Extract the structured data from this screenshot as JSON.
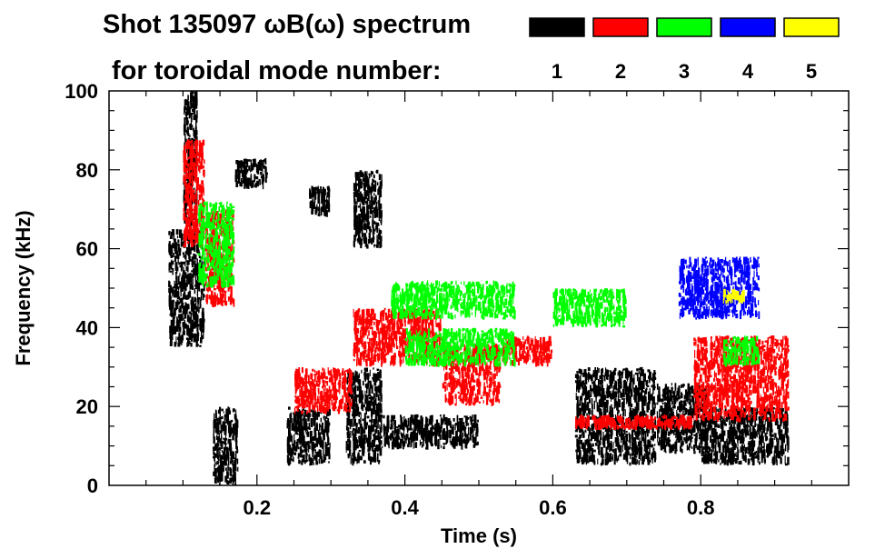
{
  "chart_data": {
    "type": "scatter",
    "title_line1": "Shot 135097 ωB(ω) spectrum",
    "title_line2": "for toroidal mode number:",
    "xlabel": "Time (s)",
    "ylabel": "Frequency (kHz)",
    "xlim": [
      0.0,
      1.0
    ],
    "ylim": [
      0,
      100
    ],
    "x_ticks": [
      0.2,
      0.4,
      0.6,
      0.8
    ],
    "x_tick_labels": [
      "0.2",
      "0.4",
      "0.6",
      "0.8"
    ],
    "y_ticks": [
      0,
      20,
      40,
      60,
      80,
      100
    ],
    "y_tick_labels": [
      "0",
      "20",
      "40",
      "60",
      "80",
      "100"
    ],
    "legend": [
      {
        "label": "1",
        "color": "#000000"
      },
      {
        "label": "2",
        "color": "#ff0000"
      },
      {
        "label": "3",
        "color": "#00ff00"
      },
      {
        "label": "4",
        "color": "#0000ff"
      },
      {
        "label": "5",
        "color": "#ffff00"
      }
    ],
    "series": [
      {
        "name": "n=1",
        "color": "#000000",
        "bands": [
          {
            "t": [
              0.08,
              0.13
            ],
            "f": [
              35,
              65
            ]
          },
          {
            "t": [
              0.1,
              0.12
            ],
            "f": [
              65,
              100
            ]
          },
          {
            "t": [
              0.14,
              0.175
            ],
            "f": [
              0,
              20
            ]
          },
          {
            "t": [
              0.17,
              0.215
            ],
            "f": [
              75,
              83
            ]
          },
          {
            "t": [
              0.24,
              0.3
            ],
            "f": [
              5,
              20
            ]
          },
          {
            "t": [
              0.27,
              0.3
            ],
            "f": [
              68,
              76
            ]
          },
          {
            "t": [
              0.32,
              0.37
            ],
            "f": [
              5,
              30
            ]
          },
          {
            "t": [
              0.33,
              0.37
            ],
            "f": [
              60,
              80
            ]
          },
          {
            "t": [
              0.37,
              0.5
            ],
            "f": [
              9,
              18
            ]
          },
          {
            "t": [
              0.63,
              0.74
            ],
            "f": [
              5,
              30
            ]
          },
          {
            "t": [
              0.74,
              0.81
            ],
            "f": [
              8,
              26
            ]
          },
          {
            "t": [
              0.8,
              0.92
            ],
            "f": [
              5,
              20
            ]
          }
        ]
      },
      {
        "name": "n=2",
        "color": "#ff0000",
        "bands": [
          {
            "t": [
              0.1,
              0.13
            ],
            "f": [
              60,
              88
            ]
          },
          {
            "t": [
              0.13,
              0.17
            ],
            "f": [
              45,
              70
            ]
          },
          {
            "t": [
              0.25,
              0.33
            ],
            "f": [
              18,
              30
            ]
          },
          {
            "t": [
              0.33,
              0.45
            ],
            "f": [
              30,
              45
            ]
          },
          {
            "t": [
              0.45,
              0.53
            ],
            "f": [
              20,
              36
            ]
          },
          {
            "t": [
              0.53,
              0.6
            ],
            "f": [
              30,
              38
            ]
          },
          {
            "t": [
              0.63,
              0.79
            ],
            "f": [
              14,
              18
            ]
          },
          {
            "t": [
              0.79,
              0.92
            ],
            "f": [
              16,
              38
            ]
          }
        ]
      },
      {
        "name": "n=3",
        "color": "#00ff00",
        "bands": [
          {
            "t": [
              0.12,
              0.17
            ],
            "f": [
              50,
              72
            ]
          },
          {
            "t": [
              0.38,
              0.55
            ],
            "f": [
              42,
              52
            ]
          },
          {
            "t": [
              0.4,
              0.55
            ],
            "f": [
              30,
              40
            ]
          },
          {
            "t": [
              0.6,
              0.7
            ],
            "f": [
              40,
              50
            ]
          },
          {
            "t": [
              0.83,
              0.88
            ],
            "f": [
              30,
              38
            ]
          }
        ]
      },
      {
        "name": "n=4",
        "color": "#0000ff",
        "bands": [
          {
            "t": [
              0.77,
              0.88
            ],
            "f": [
              42,
              58
            ]
          }
        ]
      },
      {
        "name": "n=5",
        "color": "#ffff00",
        "bands": [
          {
            "t": [
              0.83,
              0.86
            ],
            "f": [
              46,
              50
            ]
          }
        ]
      }
    ]
  }
}
